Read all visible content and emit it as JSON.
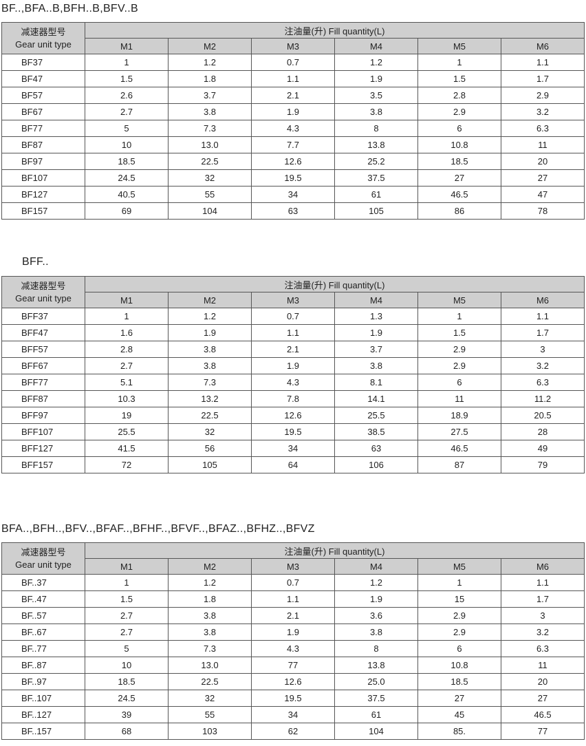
{
  "header": {
    "type_zh": "减速器型号",
    "type_en": "Gear unit type",
    "fill_label": "注油量(升) Fill quantity(L)",
    "positions": [
      "M1",
      "M2",
      "M3",
      "M4",
      "M5",
      "M6"
    ]
  },
  "tables": [
    {
      "title": "BF..,BFA..B,BFH..B,BFV..B",
      "rows": [
        [
          "BF37",
          "1",
          "1.2",
          "0.7",
          "1.2",
          "1",
          "1.1"
        ],
        [
          "BF47",
          "1.5",
          "1.8",
          "1.1",
          "1.9",
          "1.5",
          "1.7"
        ],
        [
          "BF57",
          "2.6",
          "3.7",
          "2.1",
          "3.5",
          "2.8",
          "2.9"
        ],
        [
          "BF67",
          "2.7",
          "3.8",
          "1.9",
          "3.8",
          "2.9",
          "3.2"
        ],
        [
          "BF77",
          "5",
          "7.3",
          "4.3",
          "8",
          "6",
          "6.3"
        ],
        [
          "BF87",
          "10",
          "13.0",
          "7.7",
          "13.8",
          "10.8",
          "11"
        ],
        [
          "BF97",
          "18.5",
          "22.5",
          "12.6",
          "25.2",
          "18.5",
          "20"
        ],
        [
          "BF107",
          "24.5",
          "32",
          "19.5",
          "37.5",
          "27",
          "27"
        ],
        [
          "BF127",
          "40.5",
          "55",
          "34",
          "61",
          "46.5",
          "47"
        ],
        [
          "BF157",
          "69",
          "104",
          "63",
          "105",
          "86",
          "78"
        ]
      ]
    },
    {
      "title": "BFF..",
      "rows": [
        [
          "BFF37",
          "1",
          "1.2",
          "0.7",
          "1.3",
          "1",
          "1.1"
        ],
        [
          "BFF47",
          "1.6",
          "1.9",
          "1.1",
          "1.9",
          "1.5",
          "1.7"
        ],
        [
          "BFF57",
          "2.8",
          "3.8",
          "2.1",
          "3.7",
          "2.9",
          "3"
        ],
        [
          "BFF67",
          "2.7",
          "3.8",
          "1.9",
          "3.8",
          "2.9",
          "3.2"
        ],
        [
          "BFF77",
          "5.1",
          "7.3",
          "4.3",
          "8.1",
          "6",
          "6.3"
        ],
        [
          "BFF87",
          "10.3",
          "13.2",
          "7.8",
          "14.1",
          "11",
          "11.2"
        ],
        [
          "BFF97",
          "19",
          "22.5",
          "12.6",
          "25.5",
          "18.9",
          "20.5"
        ],
        [
          "BFF107",
          "25.5",
          "32",
          "19.5",
          "38.5",
          "27.5",
          "28"
        ],
        [
          "BFF127",
          "41.5",
          "56",
          "34",
          "63",
          "46.5",
          "49"
        ],
        [
          "BFF157",
          "72",
          "105",
          "64",
          "106",
          "87",
          "79"
        ]
      ]
    },
    {
      "title": "BFA..,BFH..,BFV..,BFAF..,BFHF..,BFVF..,BFAZ..,BFHZ..,BFVZ",
      "rows": [
        [
          "BF..37",
          "1",
          "1.2",
          "0.7",
          "1.2",
          "1",
          "1.1"
        ],
        [
          "BF..47",
          "1.5",
          "1.8",
          "1.1",
          "1.9",
          "15",
          "1.7"
        ],
        [
          "BF..57",
          "2.7",
          "3.8",
          "2.1",
          "3.6",
          "2.9",
          "3"
        ],
        [
          "BF..67",
          "2.7",
          "3.8",
          "1.9",
          "3.8",
          "2.9",
          "3.2"
        ],
        [
          "BF..77",
          "5",
          "7.3",
          "4.3",
          "8",
          "6",
          "6.3"
        ],
        [
          "BF..87",
          "10",
          "13.0",
          "77",
          "13.8",
          "10.8",
          "11"
        ],
        [
          "BF..97",
          "18.5",
          "22.5",
          "12.6",
          "25.0",
          "18.5",
          "20"
        ],
        [
          "BF..107",
          "24.5",
          "32",
          "19.5",
          "37.5",
          "27",
          "27"
        ],
        [
          "BF..127",
          "39",
          "55",
          "34",
          "61",
          "45",
          "46.5"
        ],
        [
          "BF..157",
          "68",
          "103",
          "62",
          "104",
          "85.",
          "77"
        ]
      ]
    }
  ]
}
